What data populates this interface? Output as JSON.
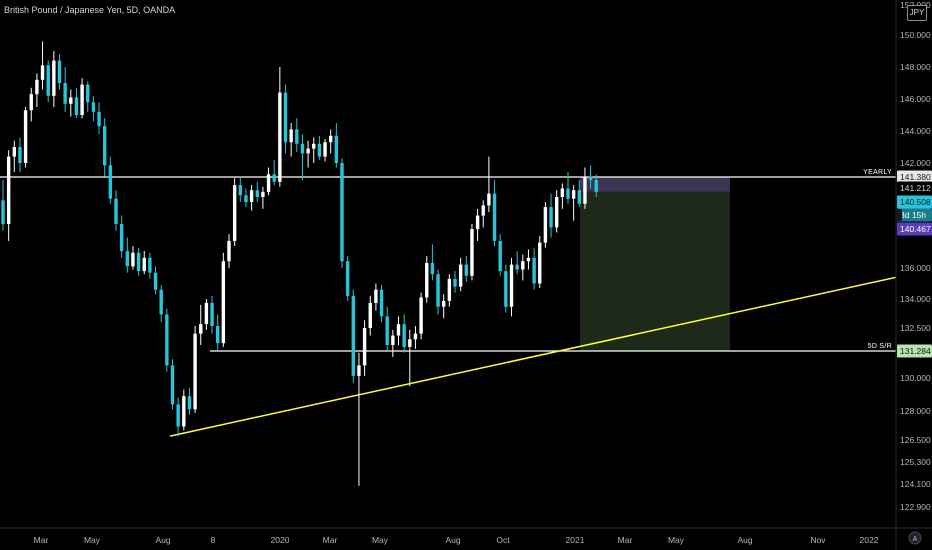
{
  "header": {
    "title": "British Pound / Japanese Yen, 5D, OANDA",
    "currency_badge": "JPY"
  },
  "colors": {
    "background": "#000000",
    "up": "#ffffff",
    "down": "#26c6da",
    "trendline": "#ffff3b",
    "hline": "#ffffff",
    "stop_zone": "#3b3551",
    "target_zone": "#1d2a1a",
    "price_tag": "#26c6da",
    "countdown_tag": "#1a7b8c",
    "purple_tag": "#5b3db8",
    "green_tag": "#b7e3b0",
    "last_tag_bg": "#e8e8e8"
  },
  "chart_data": {
    "type": "candlestick",
    "title": "British Pound / Japanese Yen, 5D, OANDA",
    "y_axis": {
      "range": [
        121.9,
        153.0
      ],
      "ticks": [
        "152.000",
        "150.000",
        "148.000",
        "146.000",
        "144.000",
        "142.000",
        "136.000",
        "134.000",
        "132.500",
        "130.000",
        "128.000",
        "126.500",
        "125.300",
        "124.100",
        "122.900"
      ],
      "tick_values": [
        152.0,
        150.0,
        148.0,
        146.0,
        144.0,
        142.0,
        136.0,
        134.0,
        132.5,
        130.0,
        128.0,
        126.5,
        125.3,
        124.1,
        122.9
      ]
    },
    "x_axis": {
      "labels": [
        "Mar",
        "May",
        "Aug",
        "8",
        "2020",
        "Mar",
        "May",
        "Aug",
        "Oct",
        "2021",
        "Mar",
        "May",
        "Aug",
        "Nov",
        "2022"
      ]
    },
    "horizontal_levels": [
      {
        "label": "YEARLY",
        "price": 141.38,
        "tag": "141.380",
        "tag_color": "#e8e8e8",
        "from_x": "2019-01"
      },
      {
        "label": "5D S/R",
        "price": 131.284,
        "tag": "131.284",
        "tag_color": "#b7e3b0",
        "from_x": "2019-08"
      }
    ],
    "price_tags": [
      {
        "value": "141.212",
        "kind": "current",
        "color": "#000000"
      },
      {
        "value": "140.508",
        "kind": "last",
        "color": "#26c6da"
      },
      {
        "value": "3d 15h",
        "kind": "countdown",
        "color": "#1a7b8c"
      },
      {
        "value": "140.467",
        "kind": "entry",
        "color": "#5b3db8"
      }
    ],
    "trendline": {
      "start_price": 126.7,
      "start_date": "2019-08",
      "end_price": 135.4,
      "end_date": "2022-03"
    },
    "position": {
      "type": "short",
      "entry": 140.5,
      "stop": 141.38,
      "target": 131.284,
      "start": "2021-01",
      "end": "2021-07"
    },
    "candles": [
      [
        140.0,
        141.2,
        138.2,
        138.6
      ],
      [
        138.6,
        142.8,
        137.6,
        142.4
      ],
      [
        142.4,
        143.4,
        141.6,
        143.0
      ],
      [
        143.0,
        143.6,
        141.6,
        142.0
      ],
      [
        142.0,
        145.5,
        141.8,
        145.3
      ],
      [
        145.3,
        146.7,
        144.6,
        146.3
      ],
      [
        146.3,
        147.6,
        145.5,
        147.2
      ],
      [
        147.2,
        149.6,
        146.6,
        148.1
      ],
      [
        148.1,
        148.4,
        145.8,
        146.2
      ],
      [
        146.2,
        149.0,
        145.5,
        148.4
      ],
      [
        148.4,
        148.8,
        146.6,
        147.0
      ],
      [
        147.0,
        148.0,
        145.2,
        145.7
      ],
      [
        145.7,
        146.6,
        144.9,
        146.1
      ],
      [
        146.1,
        146.7,
        144.8,
        145.0
      ],
      [
        145.0,
        147.3,
        144.8,
        146.9
      ],
      [
        146.9,
        147.1,
        145.2,
        145.8
      ],
      [
        145.8,
        146.2,
        144.6,
        145.2
      ],
      [
        145.2,
        145.8,
        143.8,
        144.3
      ],
      [
        144.3,
        144.8,
        141.4,
        141.9
      ],
      [
        141.9,
        142.4,
        139.8,
        140.1
      ],
      [
        140.1,
        140.6,
        138.2,
        138.6
      ],
      [
        138.6,
        139.1,
        136.6,
        137.0
      ],
      [
        137.0,
        137.8,
        135.7,
        136.1
      ],
      [
        136.1,
        137.3,
        135.9,
        136.9
      ],
      [
        136.9,
        137.2,
        135.5,
        135.8
      ],
      [
        135.8,
        137.0,
        135.6,
        136.6
      ],
      [
        136.6,
        136.9,
        135.3,
        135.7
      ],
      [
        135.7,
        136.1,
        134.3,
        134.6
      ],
      [
        134.6,
        134.9,
        132.8,
        133.2
      ],
      [
        133.2,
        133.5,
        130.3,
        130.6
      ],
      [
        130.6,
        130.9,
        128.1,
        128.4
      ],
      [
        128.4,
        128.8,
        126.7,
        127.2
      ],
      [
        127.2,
        129.3,
        127.0,
        128.9
      ],
      [
        128.9,
        129.4,
        127.8,
        128.1
      ],
      [
        128.1,
        132.6,
        127.9,
        132.2
      ],
      [
        132.2,
        133.7,
        131.6,
        132.7
      ],
      [
        132.7,
        134.0,
        132.4,
        133.8
      ],
      [
        133.8,
        134.2,
        132.2,
        132.6
      ],
      [
        132.6,
        133.2,
        131.3,
        131.7
      ],
      [
        131.7,
        136.9,
        131.5,
        136.4
      ],
      [
        136.4,
        138.0,
        136.0,
        137.6
      ],
      [
        137.6,
        141.3,
        137.3,
        140.9
      ],
      [
        140.9,
        141.4,
        139.9,
        140.3
      ],
      [
        140.3,
        140.7,
        139.6,
        139.9
      ],
      [
        139.9,
        140.9,
        139.4,
        140.6
      ],
      [
        140.6,
        141.1,
        139.9,
        140.2
      ],
      [
        140.2,
        140.8,
        139.5,
        140.5
      ],
      [
        140.5,
        141.8,
        140.3,
        141.5
      ],
      [
        141.5,
        142.2,
        140.9,
        141.1
      ],
      [
        141.1,
        148.0,
        140.8,
        146.4
      ],
      [
        146.4,
        146.9,
        142.6,
        143.3
      ],
      [
        143.3,
        144.5,
        142.4,
        144.1
      ],
      [
        144.1,
        144.8,
        142.7,
        143.2
      ],
      [
        143.2,
        143.8,
        141.2,
        142.6
      ],
      [
        142.6,
        143.4,
        141.8,
        142.9
      ],
      [
        142.9,
        143.6,
        142.0,
        143.2
      ],
      [
        143.2,
        143.7,
        142.2,
        142.4
      ],
      [
        142.4,
        143.5,
        142.1,
        143.3
      ],
      [
        143.3,
        144.1,
        142.6,
        143.7
      ],
      [
        143.7,
        144.5,
        141.8,
        142.0
      ],
      [
        142.0,
        142.3,
        136.0,
        136.4
      ],
      [
        136.4,
        136.7,
        133.9,
        134.2
      ],
      [
        134.2,
        134.6,
        129.7,
        130.1
      ],
      [
        130.1,
        131.2,
        124.0,
        130.6
      ],
      [
        130.6,
        132.9,
        130.1,
        132.5
      ],
      [
        132.5,
        134.2,
        132.1,
        133.8
      ],
      [
        133.8,
        135.0,
        133.4,
        134.6
      ],
      [
        134.6,
        134.9,
        132.8,
        133.1
      ],
      [
        133.1,
        133.6,
        131.3,
        131.6
      ],
      [
        131.6,
        132.4,
        131.0,
        132.1
      ],
      [
        132.1,
        133.1,
        131.6,
        132.7
      ],
      [
        132.7,
        133.2,
        131.2,
        131.5
      ],
      [
        131.5,
        132.4,
        129.5,
        131.9
      ],
      [
        131.9,
        132.6,
        131.4,
        132.2
      ],
      [
        132.2,
        134.4,
        131.9,
        134.1
      ],
      [
        134.1,
        136.7,
        133.8,
        136.3
      ],
      [
        136.3,
        137.4,
        135.2,
        135.6
      ],
      [
        135.6,
        135.9,
        133.2,
        133.6
      ],
      [
        133.6,
        134.3,
        133.0,
        133.9
      ],
      [
        133.9,
        135.6,
        133.6,
        135.3
      ],
      [
        135.3,
        135.8,
        134.4,
        134.8
      ],
      [
        134.8,
        136.6,
        134.5,
        136.2
      ],
      [
        136.2,
        136.7,
        135.1,
        135.5
      ],
      [
        135.5,
        138.6,
        135.2,
        138.3
      ],
      [
        138.3,
        139.5,
        137.6,
        139.1
      ],
      [
        139.1,
        140.0,
        138.4,
        139.7
      ],
      [
        139.7,
        142.4,
        139.3,
        140.4
      ],
      [
        140.4,
        141.2,
        137.3,
        137.6
      ],
      [
        137.6,
        138.0,
        135.5,
        135.8
      ],
      [
        135.8,
        136.2,
        133.3,
        133.6
      ],
      [
        133.6,
        136.6,
        133.1,
        136.2
      ],
      [
        136.2,
        137.0,
        135.6,
        135.9
      ],
      [
        135.9,
        136.8,
        135.2,
        136.4
      ],
      [
        136.4,
        137.1,
        135.9,
        136.6
      ],
      [
        136.6,
        137.2,
        134.6,
        135.0
      ],
      [
        135.0,
        137.9,
        134.7,
        137.5
      ],
      [
        137.5,
        139.9,
        137.2,
        139.6
      ],
      [
        139.6,
        140.4,
        137.8,
        138.4
      ],
      [
        138.4,
        140.6,
        138.1,
        140.2
      ],
      [
        140.2,
        141.0,
        139.5,
        140.7
      ],
      [
        140.7,
        141.6,
        139.8,
        140.1
      ],
      [
        140.1,
        140.9,
        138.8,
        140.6
      ],
      [
        140.6,
        141.2,
        139.6,
        139.8
      ],
      [
        139.8,
        141.8,
        139.5,
        141.4
      ],
      [
        141.4,
        141.9,
        140.7,
        141.2
      ],
      [
        141.2,
        141.5,
        140.2,
        140.5
      ]
    ]
  }
}
